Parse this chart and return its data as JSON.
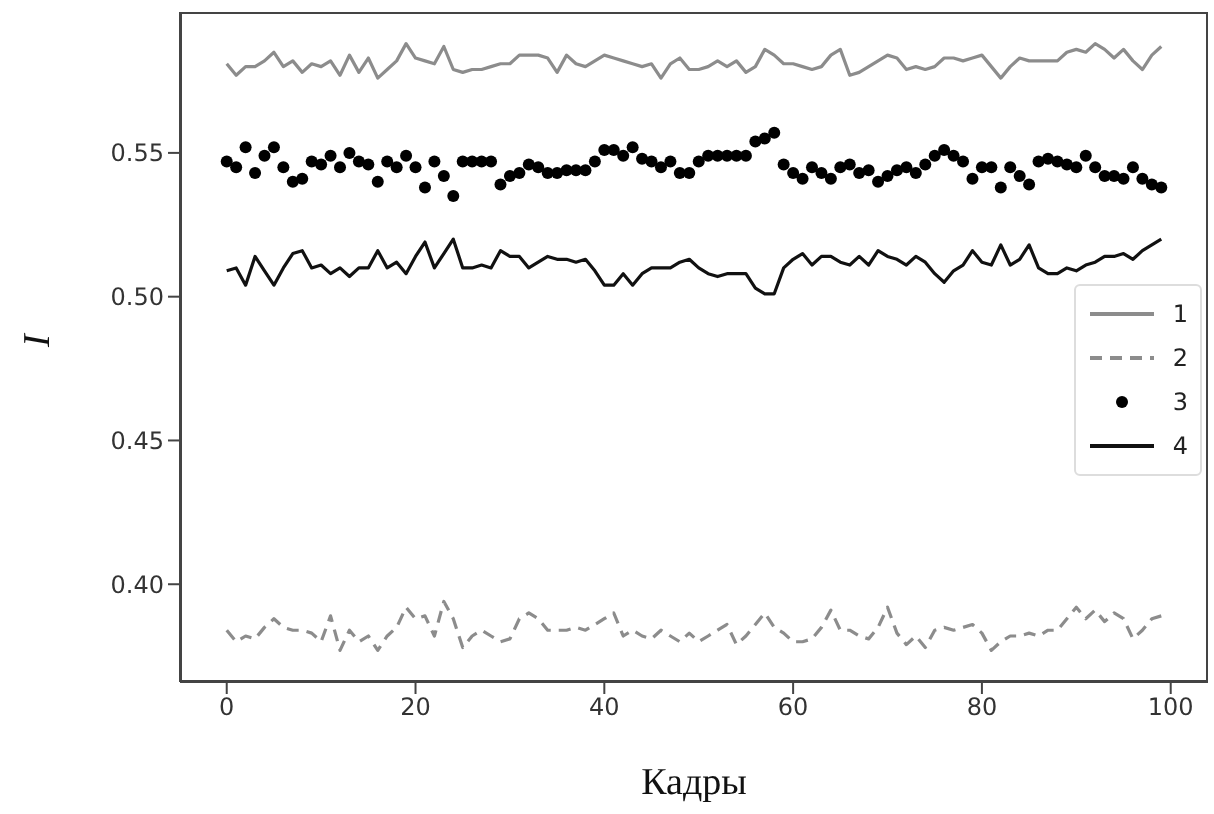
{
  "chart_data": {
    "type": "line",
    "xlabel": "Кадры",
    "ylabel": "I",
    "xlim": [
      -4.95,
      103.95
    ],
    "xticks": [
      0,
      20,
      40,
      60,
      80,
      100
    ],
    "ylim": [
      0.366,
      0.599
    ],
    "yticks": [
      {
        "value": 0.4,
        "label": "0.40"
      },
      0.45,
      {
        "value": 0.5,
        "label": "0.50"
      },
      0.55
    ],
    "legend": "right",
    "grid": false,
    "x": [
      0,
      1,
      2,
      3,
      4,
      5,
      6,
      7,
      8,
      9,
      10,
      11,
      12,
      13,
      14,
      15,
      16,
      17,
      18,
      19,
      20,
      21,
      22,
      23,
      24,
      25,
      26,
      27,
      28,
      29,
      30,
      31,
      32,
      33,
      34,
      35,
      36,
      37,
      38,
      39,
      40,
      41,
      42,
      43,
      44,
      45,
      46,
      47,
      48,
      49,
      50,
      51,
      52,
      53,
      54,
      55,
      56,
      57,
      58,
      59,
      60,
      61,
      62,
      63,
      64,
      65,
      66,
      67,
      68,
      69,
      70,
      71,
      72,
      73,
      74,
      75,
      76,
      77,
      78,
      79,
      80,
      81,
      82,
      83,
      84,
      85,
      86,
      87,
      88,
      89,
      90,
      91,
      92,
      93,
      94,
      95,
      96,
      97,
      98,
      99
    ],
    "series": [
      {
        "name": "1",
        "line_style": "solid",
        "color": "#8c8c8c",
        "values": [
          0.581,
          0.577,
          0.58,
          0.58,
          0.582,
          0.585,
          0.58,
          0.582,
          0.578,
          0.581,
          0.58,
          0.582,
          0.577,
          0.584,
          0.578,
          0.583,
          0.576,
          0.579,
          0.582,
          0.588,
          0.583,
          0.582,
          0.581,
          0.587,
          0.579,
          0.578,
          0.579,
          0.579,
          0.58,
          0.581,
          0.581,
          0.584,
          0.584,
          0.584,
          0.583,
          0.578,
          0.584,
          0.581,
          0.58,
          0.582,
          0.584,
          0.583,
          0.582,
          0.581,
          0.58,
          0.581,
          0.576,
          0.581,
          0.583,
          0.579,
          0.579,
          0.58,
          0.582,
          0.58,
          0.582,
          0.578,
          0.58,
          0.586,
          0.584,
          0.581,
          0.581,
          0.58,
          0.579,
          0.58,
          0.584,
          0.586,
          0.577,
          0.578,
          0.58,
          0.582,
          0.584,
          0.583,
          0.579,
          0.58,
          0.579,
          0.58,
          0.583,
          0.583,
          0.582,
          0.583,
          0.584,
          0.58,
          0.576,
          0.58,
          0.583,
          0.582,
          0.582,
          0.582,
          0.582,
          0.585,
          0.586,
          0.585,
          0.588,
          0.586,
          0.583,
          0.586,
          0.582,
          0.579,
          0.584,
          0.587
        ]
      },
      {
        "name": "2",
        "line_style": "dashed",
        "color": "#8c8c8c",
        "values": [
          0.384,
          0.38,
          0.382,
          0.381,
          0.385,
          0.388,
          0.385,
          0.384,
          0.384,
          0.383,
          0.38,
          0.389,
          0.377,
          0.384,
          0.38,
          0.382,
          0.377,
          0.382,
          0.385,
          0.392,
          0.388,
          0.389,
          0.382,
          0.394,
          0.388,
          0.378,
          0.382,
          0.384,
          0.382,
          0.38,
          0.381,
          0.388,
          0.39,
          0.388,
          0.384,
          0.384,
          0.384,
          0.385,
          0.384,
          0.386,
          0.388,
          0.39,
          0.382,
          0.384,
          0.382,
          0.381,
          0.384,
          0.382,
          0.38,
          0.383,
          0.38,
          0.382,
          0.384,
          0.386,
          0.379,
          0.382,
          0.386,
          0.39,
          0.385,
          0.383,
          0.38,
          0.38,
          0.381,
          0.385,
          0.391,
          0.384,
          0.384,
          0.382,
          0.381,
          0.385,
          0.392,
          0.383,
          0.379,
          0.382,
          0.378,
          0.384,
          0.385,
          0.384,
          0.385,
          0.386,
          0.383,
          0.377,
          0.38,
          0.382,
          0.382,
          0.383,
          0.382,
          0.384,
          0.384,
          0.388,
          0.392,
          0.388,
          0.391,
          0.387,
          0.39,
          0.388,
          0.381,
          0.384,
          0.388,
          0.389
        ]
      },
      {
        "name": "3",
        "type": "scatter",
        "marker": "circle",
        "color": "#000000",
        "values": [
          0.547,
          0.545,
          0.552,
          0.543,
          0.549,
          0.552,
          0.545,
          0.54,
          0.541,
          0.547,
          0.546,
          0.549,
          0.545,
          0.55,
          0.547,
          0.546,
          0.54,
          0.547,
          0.545,
          0.549,
          0.545,
          0.538,
          0.547,
          0.542,
          0.535,
          0.547,
          0.547,
          0.547,
          0.547,
          0.539,
          0.542,
          0.543,
          0.546,
          0.545,
          0.543,
          0.543,
          0.544,
          0.544,
          0.544,
          0.547,
          0.551,
          0.551,
          0.549,
          0.552,
          0.548,
          0.547,
          0.545,
          0.547,
          0.543,
          0.543,
          0.547,
          0.549,
          0.549,
          0.549,
          0.549,
          0.549,
          0.554,
          0.555,
          0.557,
          0.546,
          0.543,
          0.541,
          0.545,
          0.543,
          0.541,
          0.545,
          0.546,
          0.543,
          0.544,
          0.54,
          0.542,
          0.544,
          0.545,
          0.543,
          0.546,
          0.549,
          0.551,
          0.549,
          0.547,
          0.541,
          0.545,
          0.545,
          0.538,
          0.545,
          0.542,
          0.539,
          0.547,
          0.548,
          0.547,
          0.546,
          0.545,
          0.549,
          0.545,
          0.542,
          0.542,
          0.541,
          0.545,
          0.541,
          0.539,
          0.538
        ]
      },
      {
        "name": "4",
        "line_style": "solid",
        "color": "#111111",
        "values": [
          0.509,
          0.51,
          0.504,
          0.514,
          0.509,
          0.504,
          0.51,
          0.515,
          0.516,
          0.51,
          0.511,
          0.508,
          0.51,
          0.507,
          0.51,
          0.51,
          0.516,
          0.51,
          0.512,
          0.508,
          0.514,
          0.519,
          0.51,
          0.515,
          0.52,
          0.51,
          0.51,
          0.511,
          0.51,
          0.516,
          0.514,
          0.514,
          0.51,
          0.512,
          0.514,
          0.513,
          0.513,
          0.512,
          0.513,
          0.509,
          0.504,
          0.504,
          0.508,
          0.504,
          0.508,
          0.51,
          0.51,
          0.51,
          0.512,
          0.513,
          0.51,
          0.508,
          0.507,
          0.508,
          0.508,
          0.508,
          0.503,
          0.501,
          0.501,
          0.51,
          0.513,
          0.515,
          0.511,
          0.514,
          0.514,
          0.512,
          0.511,
          0.514,
          0.511,
          0.516,
          0.514,
          0.513,
          0.511,
          0.514,
          0.512,
          0.508,
          0.505,
          0.509,
          0.511,
          0.516,
          0.512,
          0.511,
          0.518,
          0.511,
          0.513,
          0.518,
          0.51,
          0.508,
          0.508,
          0.51,
          0.509,
          0.511,
          0.512,
          0.514,
          0.514,
          0.515,
          0.513,
          0.516,
          0.518,
          0.52
        ]
      }
    ]
  }
}
